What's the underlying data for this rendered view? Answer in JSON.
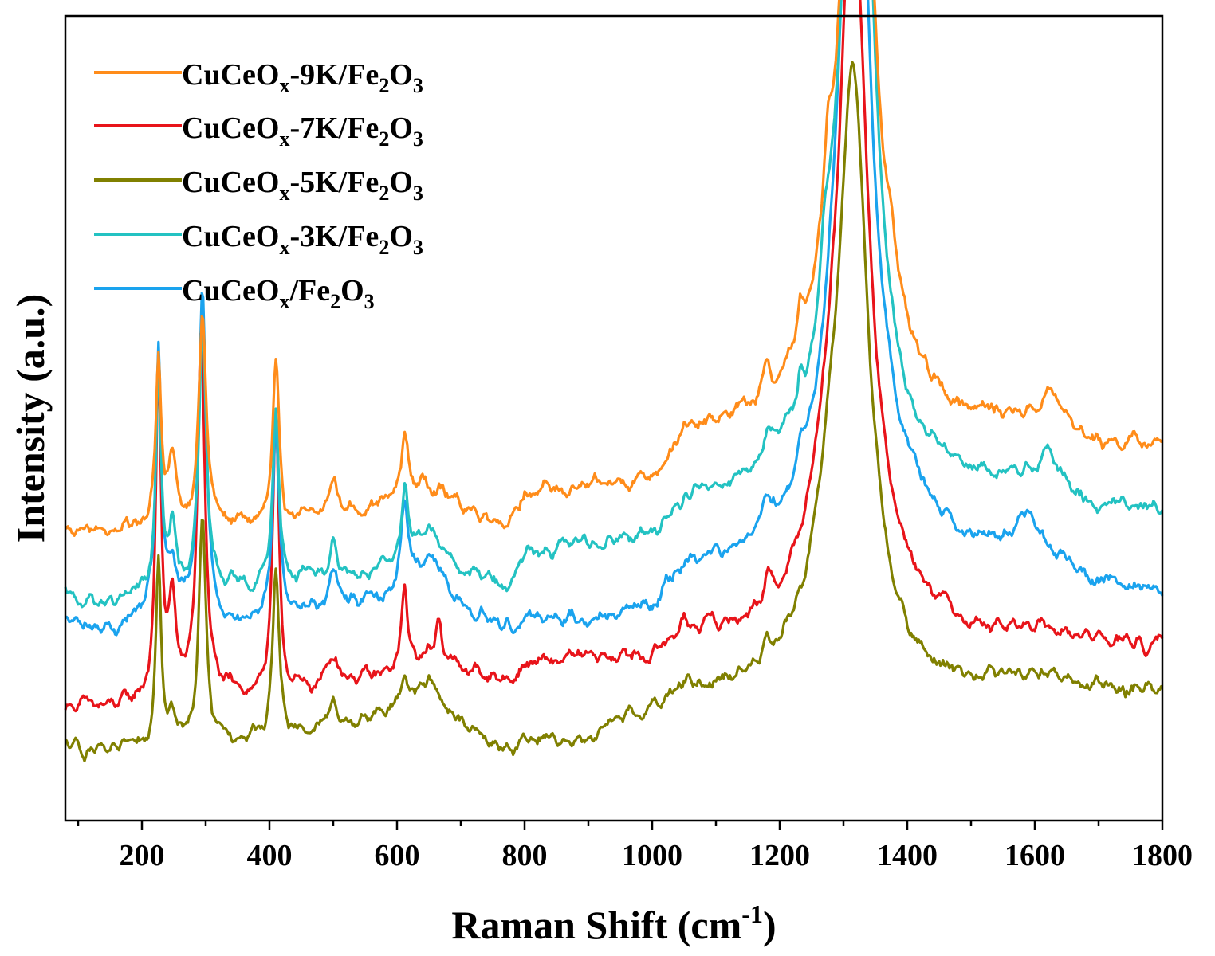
{
  "chart_data": {
    "type": "line",
    "title": "",
    "xlabel": {
      "main": "Raman Shift (cm",
      "sup": "-1",
      "close": ")"
    },
    "ylabel": "Intensity (a.u.)",
    "xlim": [
      80,
      1800
    ],
    "ylim": [
      0,
      100
    ],
    "grid": false,
    "legend_position": "top-left",
    "x_ticks": [
      "200",
      "400",
      "600",
      "800",
      "1000",
      "1200",
      "1400",
      "1600",
      "1800"
    ],
    "x_tick_values": [
      200,
      400,
      600,
      800,
      1000,
      1200,
      1400,
      1600,
      1800
    ],
    "y_ticks_shown": false,
    "series": [
      {
        "id": "s9k",
        "legend": {
          "a": "CuCeO",
          "x": "x",
          "b": "-9K/Fe",
          "two": "2",
          "o": "O",
          "three": "3"
        },
        "color": "#FF8C1A",
        "baseline": [
          [
            80,
            35.5
          ],
          [
            150,
            35
          ],
          [
            200,
            36
          ],
          [
            300,
            36
          ],
          [
            400,
            36
          ],
          [
            500,
            37
          ],
          [
            580,
            38.8
          ],
          [
            650,
            41.5
          ],
          [
            700,
            38.5
          ],
          [
            780,
            36
          ],
          [
            800,
            40
          ],
          [
            900,
            40.5
          ],
          [
            1000,
            42
          ],
          [
            1050,
            47.5
          ],
          [
            1100,
            48.5
          ],
          [
            1150,
            49.5
          ],
          [
            1200,
            51
          ],
          [
            1240,
            53
          ],
          [
            1280,
            57
          ],
          [
            1400,
            52
          ],
          [
            1450,
            50
          ],
          [
            1500,
            49.5
          ],
          [
            1600,
            49.5
          ],
          [
            1700,
            46.5
          ],
          [
            1800,
            46.5
          ]
        ],
        "peaks": [
          [
            226,
            22,
            5
          ],
          [
            248,
            8,
            7
          ],
          [
            295,
            27,
            7
          ],
          [
            410,
            20,
            6
          ],
          [
            500,
            5,
            8
          ],
          [
            612,
            8,
            6
          ],
          [
            1322,
            103,
            26
          ],
          [
            1275,
            10,
            8
          ],
          [
            1232,
            5,
            6
          ],
          [
            1375,
            6,
            8
          ],
          [
            1180,
            3,
            6
          ],
          [
            1627,
            4,
            18
          ]
        ]
      },
      {
        "id": "s7k",
        "legend": {
          "a": "CuCeO",
          "x": "x",
          "b": "-7K/Fe",
          "two": "2",
          "o": "O",
          "three": "3"
        },
        "color": "#E8141A",
        "baseline": [
          [
            80,
            12.5
          ],
          [
            150,
            12
          ],
          [
            200,
            13
          ],
          [
            300,
            13.5
          ],
          [
            400,
            14
          ],
          [
            450,
            14
          ],
          [
            520,
            15.5
          ],
          [
            580,
            16
          ],
          [
            650,
            18.5
          ],
          [
            700,
            17
          ],
          [
            780,
            15.5
          ],
          [
            800,
            17.5
          ],
          [
            900,
            18.5
          ],
          [
            1000,
            18.5
          ],
          [
            1050,
            22.5
          ],
          [
            1100,
            22
          ],
          [
            1150,
            22.5
          ],
          [
            1200,
            24.5
          ],
          [
            1240,
            29
          ],
          [
            1280,
            38
          ],
          [
            1400,
            26
          ],
          [
            1450,
            24
          ],
          [
            1500,
            22
          ],
          [
            1600,
            22
          ],
          [
            1700,
            21
          ],
          [
            1800,
            20
          ]
        ],
        "peaks": [
          [
            226,
            43,
            5
          ],
          [
            248,
            12,
            7
          ],
          [
            293,
            48,
            7
          ],
          [
            410,
            35,
            6
          ],
          [
            500,
            4,
            10
          ],
          [
            612,
            10,
            6
          ],
          [
            666,
            6,
            6
          ],
          [
            1315,
            85,
            26
          ],
          [
            1180,
            3,
            6
          ]
        ]
      },
      {
        "id": "s5k",
        "legend": {
          "a": "CuCeO",
          "x": "x",
          "b": "-5K/Fe",
          "two": "2",
          "o": "O",
          "three": "3"
        },
        "color": "#808000",
        "baseline": [
          [
            80,
            7
          ],
          [
            150,
            6
          ],
          [
            200,
            7
          ],
          [
            300,
            7
          ],
          [
            400,
            8
          ],
          [
            500,
            9.5
          ],
          [
            550,
            10.5
          ],
          [
            600,
            12.5
          ],
          [
            650,
            15.5
          ],
          [
            700,
            10
          ],
          [
            760,
            6.5
          ],
          [
            800,
            7.5
          ],
          [
            900,
            8
          ],
          [
            950,
            10
          ],
          [
            1000,
            12
          ],
          [
            1050,
            14.5
          ],
          [
            1100,
            15
          ],
          [
            1150,
            15.5
          ],
          [
            1200,
            18
          ],
          [
            1240,
            23
          ],
          [
            1280,
            33
          ],
          [
            1400,
            17
          ],
          [
            1450,
            15.5
          ],
          [
            1500,
            15.5
          ],
          [
            1600,
            16
          ],
          [
            1700,
            14.5
          ],
          [
            1800,
            14.5
          ]
        ],
        "peaks": [
          [
            226,
            25,
            5
          ],
          [
            246,
            4,
            7
          ],
          [
            295,
            30,
            7
          ],
          [
            410,
            23,
            6
          ],
          [
            500,
            3,
            8
          ],
          [
            612,
            3,
            6
          ],
          [
            1315,
            68,
            26
          ],
          [
            1180,
            3,
            6
          ]
        ]
      },
      {
        "id": "s3k",
        "legend": {
          "a": "CuCeO",
          "x": "x",
          "b": "-3K/Fe",
          "two": "2",
          "o": "O",
          "three": "3"
        },
        "color": "#23C2C2",
        "baseline": [
          [
            80,
            26.5
          ],
          [
            150,
            25.5
          ],
          [
            200,
            27
          ],
          [
            300,
            27
          ],
          [
            400,
            28
          ],
          [
            500,
            29
          ],
          [
            580,
            30
          ],
          [
            650,
            35
          ],
          [
            700,
            30
          ],
          [
            780,
            28
          ],
          [
            800,
            32
          ],
          [
            900,
            33.5
          ],
          [
            1000,
            34
          ],
          [
            1050,
            39
          ],
          [
            1100,
            40
          ],
          [
            1150,
            41
          ],
          [
            1200,
            43
          ],
          [
            1240,
            44
          ],
          [
            1280,
            52
          ],
          [
            1400,
            43
          ],
          [
            1450,
            42
          ],
          [
            1500,
            41.5
          ],
          [
            1600,
            41.5
          ],
          [
            1700,
            38
          ],
          [
            1800,
            38
          ]
        ],
        "peaks": [
          [
            226,
            28,
            5
          ],
          [
            248,
            8,
            7
          ],
          [
            295,
            34,
            7
          ],
          [
            410,
            23,
            6
          ],
          [
            500,
            5,
            8
          ],
          [
            612,
            9,
            6
          ],
          [
            1322,
            107,
            26
          ],
          [
            1270,
            6,
            8
          ],
          [
            1232,
            5,
            6
          ],
          [
            1180,
            3,
            6
          ],
          [
            1625,
            4,
            18
          ]
        ]
      },
      {
        "id": "s0",
        "legend": {
          "a": "CuCeO",
          "x": "x",
          "b": "/Fe",
          "two": "2",
          "o": "O",
          "three": "3"
        },
        "color": "#1AA3EE",
        "baseline": [
          [
            80,
            23.5
          ],
          [
            150,
            22
          ],
          [
            200,
            24
          ],
          [
            300,
            24.5
          ],
          [
            350,
            22.5
          ],
          [
            400,
            24
          ],
          [
            500,
            25.5
          ],
          [
            580,
            26.5
          ],
          [
            650,
            32
          ],
          [
            700,
            25
          ],
          [
            780,
            22.5
          ],
          [
            800,
            24
          ],
          [
            900,
            23.5
          ],
          [
            1000,
            25
          ],
          [
            1050,
            30.5
          ],
          [
            1100,
            31.5
          ],
          [
            1150,
            32
          ],
          [
            1200,
            34
          ],
          [
            1240,
            36
          ],
          [
            1280,
            44
          ],
          [
            1400,
            38
          ],
          [
            1450,
            34.5
          ],
          [
            1500,
            33
          ],
          [
            1600,
            33
          ],
          [
            1700,
            28
          ],
          [
            1800,
            27.5
          ]
        ],
        "peaks": [
          [
            226,
            35,
            5
          ],
          [
            248,
            6,
            7
          ],
          [
            295,
            42,
            7
          ],
          [
            410,
            25,
            6
          ],
          [
            500,
            5,
            8
          ],
          [
            612,
            10,
            6
          ],
          [
            1318,
            104,
            26
          ],
          [
            1232,
            4,
            6
          ],
          [
            1180,
            3,
            6
          ],
          [
            1590,
            4,
            14
          ]
        ]
      }
    ]
  }
}
